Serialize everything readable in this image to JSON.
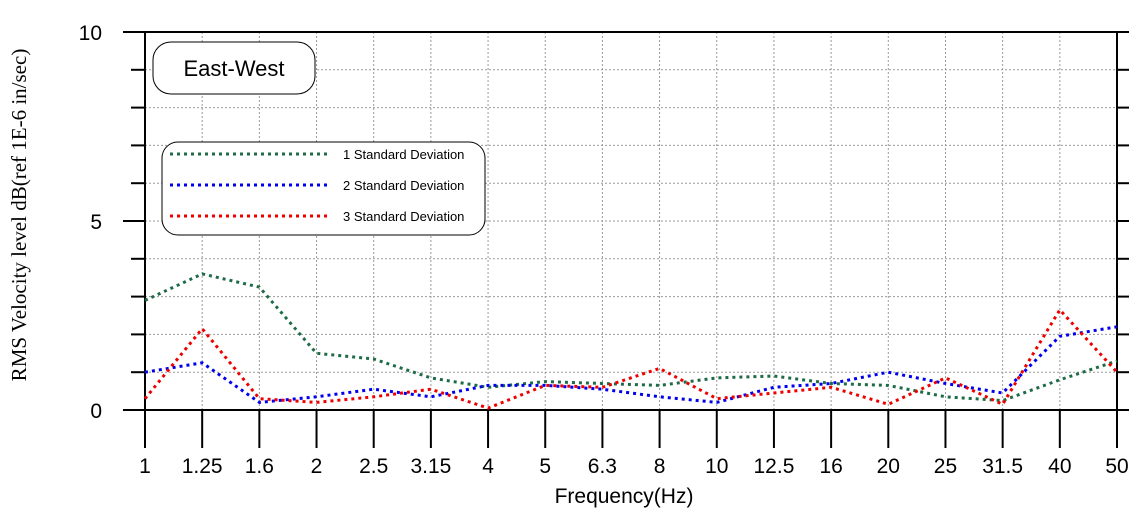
{
  "chart_data": {
    "type": "line",
    "title": "East-West",
    "xlabel": "Frequency(Hz)",
    "ylabel": "RMS Velocity level dB(ref 1E-6 in/sec)",
    "categories": [
      "1",
      "1.25",
      "1.6",
      "2",
      "2.5",
      "3.15",
      "4",
      "5",
      "6.3",
      "8",
      "10",
      "12.5",
      "16",
      "20",
      "25",
      "31.5",
      "40",
      "50"
    ],
    "ylim": [
      0,
      10
    ],
    "yticks": [
      "0",
      "5",
      "10"
    ],
    "grid": true,
    "legend_position": "top-left",
    "series": [
      {
        "name": "1 Standard Deviation",
        "color": "#1e6b46",
        "values": [
          2.9,
          3.6,
          3.25,
          1.5,
          1.35,
          0.85,
          0.6,
          0.75,
          0.7,
          0.65,
          0.85,
          0.9,
          0.7,
          0.65,
          0.35,
          0.25,
          0.8,
          1.3
        ]
      },
      {
        "name": "2 Standard Deviation",
        "color": "#0000ee",
        "values": [
          1.0,
          1.25,
          0.2,
          0.35,
          0.55,
          0.35,
          0.65,
          0.65,
          0.55,
          0.35,
          0.2,
          0.6,
          0.7,
          1.0,
          0.7,
          0.45,
          1.95,
          2.2
        ]
      },
      {
        "name": "3 Standard Deviation",
        "color": "#ee0000",
        "values": [
          0.3,
          2.15,
          0.3,
          0.2,
          0.35,
          0.55,
          0.05,
          0.65,
          0.6,
          1.1,
          0.3,
          0.45,
          0.6,
          0.15,
          0.85,
          0.15,
          2.65,
          1.0
        ]
      }
    ]
  }
}
